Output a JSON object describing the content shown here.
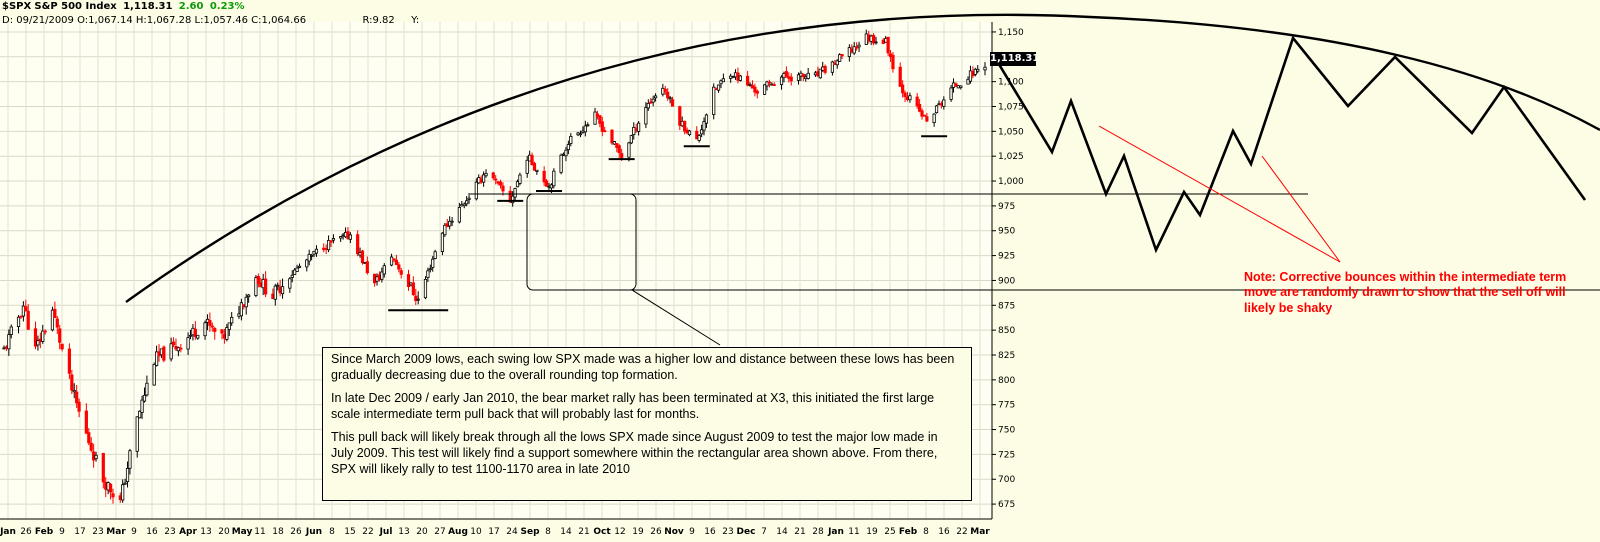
{
  "header": {
    "symbol": "$SPX",
    "name": "S&P 500 Index",
    "last": "1,118.31",
    "change": "2.60",
    "change_pct": "0.23%",
    "d_label": "D:",
    "date": "09/21/2009",
    "o_label": "O:",
    "open": "1,067.14",
    "h_label": "H:",
    "high": "1,067.28",
    "l_label": "L:",
    "low": "1,057.46",
    "c_label": "C:",
    "close": "1,064.66",
    "r_label": "R:",
    "r_value": "9.82",
    "y_label": "Y:"
  },
  "last_price_tag": "1,118.31",
  "note_box": {
    "p1": "Since March 2009 lows, each swing low SPX made was a higher low and distance between these lows has been gradually decreasing due to the overall rounding top formation.",
    "p2": "In late Dec 2009 / early Jan 2010, the bear market rally has been terminated at X3, this initiated the first large scale intermediate term pull back that will probably last for months.",
    "p3": "This pull back will likely break through all the lows SPX made since August 2009 to test the major low made in July 2009. This test will likely find a support somewhere within the rectangular area shown above. From there, SPX will likely rally to test 1100-1170 area in late 2010"
  },
  "side_note": "Note: Corrective bounces within the intermediate term move are randomly drawn to show that the sell off will likely be shaky",
  "colors": {
    "background": "#fdfde6",
    "up_candle": "#000000",
    "down_candle": "#ff0000",
    "annotation": "#ff0000",
    "change_text": "#0a9a0a"
  },
  "chart_data": {
    "type": "candlestick",
    "title": "$SPX S&P 500 Index",
    "xlabel": "",
    "ylabel": "",
    "ylim": [
      660,
      1160
    ],
    "y_ticks": [
      675,
      700,
      725,
      750,
      775,
      800,
      825,
      850,
      875,
      900,
      925,
      950,
      975,
      1000,
      1025,
      1050,
      1075,
      1100,
      1125,
      1150
    ],
    "y_tick_labels": [
      "675",
      "700",
      "725",
      "750",
      "775",
      "800",
      "825",
      "850",
      "875",
      "900",
      "925",
      "950",
      "975",
      "1,000",
      "1,025",
      "1,050",
      "1,075",
      "1,100",
      "1,125",
      "1,150"
    ],
    "x_tick_labels": [
      "Jan",
      "26",
      "Feb",
      "9",
      "17",
      "23",
      "Mar",
      "9",
      "16",
      "23",
      "Apr",
      "13",
      "20",
      "May",
      "11",
      "18",
      "26",
      "Jun",
      "8",
      "15",
      "22",
      "Jul",
      "13",
      "20",
      "27",
      "Aug",
      "10",
      "17",
      "24",
      "Sep",
      "8",
      "14",
      "21",
      "Oct",
      "12",
      "19",
      "26",
      "Nov",
      "9",
      "16",
      "23",
      "Dec",
      "7",
      "14",
      "21",
      "28",
      "Jan",
      "11",
      "19",
      "25",
      "Feb",
      "8",
      "16",
      "22",
      "Mar"
    ],
    "grid": true,
    "price_path": [
      [
        "2009-01-20",
        830
      ],
      [
        "2009-01-28",
        875
      ],
      [
        "2009-02-02",
        830
      ],
      [
        "2009-02-09",
        870
      ],
      [
        "2009-02-17",
        790
      ],
      [
        "2009-02-23",
        745
      ],
      [
        "2009-03-02",
        700
      ],
      [
        "2009-03-09",
        677
      ],
      [
        "2009-03-16",
        760
      ],
      [
        "2009-03-23",
        820
      ],
      [
        "2009-04-02",
        835
      ],
      [
        "2009-04-13",
        858
      ],
      [
        "2009-04-20",
        840
      ],
      [
        "2009-05-04",
        903
      ],
      [
        "2009-05-11",
        885
      ],
      [
        "2009-05-18",
        905
      ],
      [
        "2009-06-01",
        935
      ],
      [
        "2009-06-12",
        946
      ],
      [
        "2009-06-22",
        895
      ],
      [
        "2009-06-29",
        925
      ],
      [
        "2009-07-10",
        880
      ],
      [
        "2009-07-20",
        950
      ],
      [
        "2009-07-31",
        985
      ],
      [
        "2009-08-07",
        1010
      ],
      [
        "2009-08-17",
        980
      ],
      [
        "2009-08-24",
        1025
      ],
      [
        "2009-09-02",
        995
      ],
      [
        "2009-09-10",
        1040
      ],
      [
        "2009-09-21",
        1065
      ],
      [
        "2009-10-02",
        1025
      ],
      [
        "2009-10-12",
        1075
      ],
      [
        "2009-10-19",
        1095
      ],
      [
        "2009-10-26",
        1060
      ],
      [
        "2009-11-02",
        1040
      ],
      [
        "2009-11-09",
        1090
      ],
      [
        "2009-11-16",
        1110
      ],
      [
        "2009-11-27",
        1090
      ],
      [
        "2009-12-07",
        1105
      ],
      [
        "2009-12-21",
        1105
      ],
      [
        "2010-01-04",
        1130
      ],
      [
        "2010-01-11",
        1145
      ],
      [
        "2010-01-19",
        1140
      ],
      [
        "2010-01-25",
        1095
      ],
      [
        "2010-02-05",
        1060
      ],
      [
        "2010-02-16",
        1095
      ],
      [
        "2010-02-22",
        1105
      ],
      [
        "2010-03-01",
        1118
      ]
    ],
    "swing_low_markers": [
      [
        "2009-07-10",
        870
      ],
      [
        "2009-08-17",
        980
      ],
      [
        "2009-09-02",
        990
      ],
      [
        "2009-10-02",
        1022
      ],
      [
        "2009-11-02",
        1035
      ],
      [
        "2010-02-08",
        1045
      ]
    ],
    "last_value": 1118.31
  }
}
